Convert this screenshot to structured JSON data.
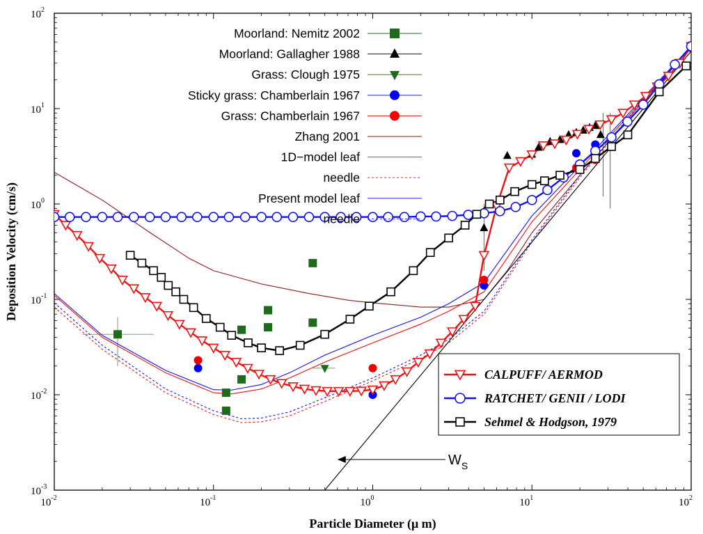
{
  "chart_data": {
    "type": "scatter",
    "xlabel": "Particle Diameter (μ m)",
    "ylabel": "Deposition Velocity (cm/s)",
    "xscale": "log",
    "yscale": "log",
    "xlim": [
      0.01,
      100
    ],
    "ylim": [
      0.001,
      100
    ],
    "x_ticks": [
      {
        "base": "10",
        "exp": "-2"
      },
      {
        "base": "10",
        "exp": "-1"
      },
      {
        "base": "10",
        "exp": "0"
      },
      {
        "base": "10",
        "exp": "1"
      },
      {
        "base": "10",
        "exp": "2"
      }
    ],
    "y_ticks": [
      {
        "base": "10",
        "exp": "-3"
      },
      {
        "base": "10",
        "exp": "-2"
      },
      {
        "base": "10",
        "exp": "-1"
      },
      {
        "base": "10",
        "exp": "0"
      },
      {
        "base": "10",
        "exp": "1"
      },
      {
        "base": "10",
        "exp": "2"
      }
    ],
    "legend_placement": "top-center",
    "secondary_legend_placement": "bottom-right",
    "annotation": {
      "text": "W",
      "sub": "S"
    },
    "series": [
      {
        "name": "Moorland: Nemitz 2002",
        "kind": "marker",
        "marker": "square",
        "color": "#1e6b1e",
        "points": [
          [
            0.025,
            0.043
          ],
          [
            0.12,
            0.0105
          ],
          [
            0.12,
            0.0068
          ],
          [
            0.15,
            0.048
          ],
          [
            0.15,
            0.0145
          ],
          [
            0.22,
            0.077
          ],
          [
            0.22,
            0.051
          ],
          [
            0.42,
            0.24
          ],
          [
            0.42,
            0.057
          ]
        ],
        "errorbars": [
          {
            "x": 0.025,
            "y": 0.043,
            "x_lo": 0.015,
            "x_hi": 0.042,
            "y_lo": 0.02,
            "y_hi": 0.065
          }
        ]
      },
      {
        "name": "Moorland: Gallagher 1988",
        "kind": "marker",
        "marker": "triangle-up",
        "color": "#000000",
        "points": [
          [
            5,
            0.56
          ],
          [
            7,
            3.2
          ],
          [
            10,
            3.3
          ],
          [
            11,
            3.9
          ],
          [
            13,
            4.5
          ],
          [
            15,
            4.7
          ],
          [
            17,
            5.3
          ],
          [
            19,
            5.6
          ],
          [
            21,
            5.9
          ],
          [
            23,
            6.3
          ],
          [
            25,
            6.6
          ],
          [
            27,
            5.3
          ]
        ],
        "errorbars": [
          {
            "x": 5,
            "y": 0.56,
            "y_lo": 0.2,
            "y_hi": 1.0
          },
          {
            "x": 28,
            "y": 5.3,
            "y_lo": 1.2,
            "y_hi": 9.0
          },
          {
            "x": 31,
            "y": 5.3,
            "y_lo": 0.9,
            "y_hi": 9.0
          }
        ]
      },
      {
        "name": "Grass: Clough 1975",
        "kind": "marker",
        "marker": "triangle-down",
        "color": "#1e6b1e",
        "points": [
          [
            0.5,
            0.019
          ]
        ],
        "errorbars": [
          {
            "x": 0.5,
            "y": 0.019,
            "x_lo": 0.42,
            "x_hi": 0.58
          }
        ]
      },
      {
        "name": "Sticky grass: Chamberlain 1967",
        "kind": "marker",
        "marker": "circle",
        "color": "#0000ee",
        "points": [
          [
            0.08,
            0.019
          ],
          [
            1.0,
            0.01
          ],
          [
            5,
            0.14
          ],
          [
            19,
            3.4
          ],
          [
            25,
            4.2
          ]
        ]
      },
      {
        "name": "Grass: Chamberlain 1967",
        "kind": "marker",
        "marker": "circle",
        "color": "#ee0000",
        "points": [
          [
            0.08,
            0.023
          ],
          [
            1.0,
            0.019
          ],
          [
            5,
            0.16
          ],
          [
            19,
            2.4
          ],
          [
            25,
            2.9
          ]
        ]
      },
      {
        "name": "Zhang 2001",
        "kind": "line",
        "color": "#8b1a1a",
        "dash": "",
        "points": [
          [
            0.01,
            2.15
          ],
          [
            0.02,
            1.1
          ],
          [
            0.04,
            0.5
          ],
          [
            0.07,
            0.27
          ],
          [
            0.1,
            0.2
          ],
          [
            0.2,
            0.145
          ],
          [
            0.4,
            0.115
          ],
          [
            0.7,
            0.098
          ],
          [
            1,
            0.092
          ],
          [
            2,
            0.083
          ],
          [
            3,
            0.083
          ],
          [
            5,
            0.1
          ],
          [
            7,
            0.2
          ],
          [
            10,
            0.5
          ],
          [
            20,
            2.0
          ],
          [
            50,
            12
          ],
          [
            100,
            45
          ]
        ]
      },
      {
        "name": "1D−model leaf",
        "kind": "line",
        "color": "#ee1111",
        "dash": "",
        "points": [
          [
            0.01,
            0.11
          ],
          [
            0.02,
            0.04
          ],
          [
            0.05,
            0.017
          ],
          [
            0.1,
            0.0105
          ],
          [
            0.13,
            0.0102
          ],
          [
            0.2,
            0.0115
          ],
          [
            0.3,
            0.015
          ],
          [
            0.5,
            0.022
          ],
          [
            1,
            0.035
          ],
          [
            2,
            0.055
          ],
          [
            3,
            0.075
          ],
          [
            5,
            0.12
          ],
          [
            10,
            0.65
          ],
          [
            20,
            2.3
          ],
          [
            50,
            12.5
          ],
          [
            100,
            45
          ]
        ]
      },
      {
        "name": "needle",
        "kind": "line",
        "color": "#ee1111",
        "dash": "3,3",
        "points": [
          [
            0.01,
            0.083
          ],
          [
            0.02,
            0.03
          ],
          [
            0.05,
            0.0105
          ],
          [
            0.1,
            0.0062
          ],
          [
            0.15,
            0.0051
          ],
          [
            0.2,
            0.0052
          ],
          [
            0.3,
            0.006
          ],
          [
            0.5,
            0.0085
          ],
          [
            1,
            0.014
          ],
          [
            2,
            0.024
          ],
          [
            3,
            0.035
          ],
          [
            5,
            0.07
          ],
          [
            10,
            0.4
          ],
          [
            20,
            1.9
          ],
          [
            50,
            12
          ],
          [
            100,
            45
          ]
        ]
      },
      {
        "name": "Present model leaf",
        "kind": "line",
        "color": "#1111ee",
        "dash": "",
        "points": [
          [
            0.01,
            0.115
          ],
          [
            0.02,
            0.042
          ],
          [
            0.05,
            0.018
          ],
          [
            0.1,
            0.0113
          ],
          [
            0.13,
            0.0112
          ],
          [
            0.2,
            0.0128
          ],
          [
            0.3,
            0.017
          ],
          [
            0.5,
            0.026
          ],
          [
            1,
            0.042
          ],
          [
            2,
            0.065
          ],
          [
            3,
            0.09
          ],
          [
            5,
            0.15
          ],
          [
            10,
            0.75
          ],
          [
            20,
            2.5
          ],
          [
            50,
            13
          ],
          [
            100,
            45
          ]
        ]
      },
      {
        "name": "needle",
        "kind": "line",
        "color": "#1111ee",
        "dash": "3,3",
        "points": [
          [
            0.01,
            0.092
          ],
          [
            0.02,
            0.033
          ],
          [
            0.05,
            0.0115
          ],
          [
            0.1,
            0.0068
          ],
          [
            0.15,
            0.0056
          ],
          [
            0.2,
            0.0057
          ],
          [
            0.3,
            0.0066
          ],
          [
            0.5,
            0.0093
          ],
          [
            1,
            0.015
          ],
          [
            2,
            0.026
          ],
          [
            3,
            0.038
          ],
          [
            5,
            0.075
          ],
          [
            10,
            0.42
          ],
          [
            20,
            2.0
          ],
          [
            50,
            12.2
          ],
          [
            100,
            45
          ]
        ]
      },
      {
        "name": "CALPUFF/ AERMOD",
        "kind": "line-marker",
        "marker": "triangle-down-open",
        "color": "#ee1111",
        "dash": "",
        "points": [
          [
            0.01,
            0.78
          ],
          [
            0.0118,
            0.6
          ],
          [
            0.0139,
            0.47
          ],
          [
            0.0164,
            0.36
          ],
          [
            0.0193,
            0.27
          ],
          [
            0.0228,
            0.21
          ],
          [
            0.0268,
            0.16
          ],
          [
            0.0316,
            0.13
          ],
          [
            0.0373,
            0.105
          ],
          [
            0.044,
            0.085
          ],
          [
            0.0518,
            0.068
          ],
          [
            0.0611,
            0.055
          ],
          [
            0.072,
            0.045
          ],
          [
            0.0848,
            0.037
          ],
          [
            0.1,
            0.031
          ],
          [
            0.118,
            0.026
          ],
          [
            0.139,
            0.022
          ],
          [
            0.164,
            0.019
          ],
          [
            0.193,
            0.0165
          ],
          [
            0.228,
            0.0145
          ],
          [
            0.268,
            0.0132
          ],
          [
            0.316,
            0.0122
          ],
          [
            0.373,
            0.0115
          ],
          [
            0.44,
            0.0111
          ],
          [
            0.518,
            0.0109
          ],
          [
            0.611,
            0.0109
          ],
          [
            0.72,
            0.0109
          ],
          [
            0.848,
            0.011
          ],
          [
            1.0,
            0.0113
          ],
          [
            1.18,
            0.0125
          ],
          [
            1.39,
            0.0145
          ],
          [
            1.64,
            0.0175
          ],
          [
            1.93,
            0.022
          ],
          [
            2.28,
            0.027
          ],
          [
            2.68,
            0.035
          ],
          [
            3.16,
            0.046
          ],
          [
            3.73,
            0.062
          ],
          [
            4.4,
            0.085
          ],
          [
            5.0,
            0.29
          ],
          [
            6.0,
            0.95
          ],
          [
            7.2,
            2.4
          ],
          [
            8.48,
            2.8
          ],
          [
            10,
            3.3
          ],
          [
            11.8,
            4.1
          ],
          [
            13.9,
            4.3
          ],
          [
            16.4,
            4.7
          ],
          [
            19.3,
            5.4
          ],
          [
            22.8,
            6.1
          ],
          [
            26.8,
            6.8
          ],
          [
            31.6,
            7.7
          ],
          [
            37.3,
            9.0
          ],
          [
            44,
            11
          ],
          [
            51.8,
            13.5
          ],
          [
            61.1,
            17
          ],
          [
            72,
            22
          ],
          [
            84.8,
            30
          ],
          [
            100,
            45
          ]
        ]
      },
      {
        "name": "RATCHET/ GENII / LODI",
        "kind": "line-marker",
        "marker": "circle-open",
        "color": "#1111ee",
        "dash": "",
        "points": [
          [
            0.01,
            0.73
          ],
          [
            0.0125,
            0.73
          ],
          [
            0.0158,
            0.73
          ],
          [
            0.02,
            0.73
          ],
          [
            0.025,
            0.73
          ],
          [
            0.0316,
            0.73
          ],
          [
            0.0398,
            0.73
          ],
          [
            0.05,
            0.73
          ],
          [
            0.063,
            0.73
          ],
          [
            0.079,
            0.73
          ],
          [
            0.1,
            0.73
          ],
          [
            0.125,
            0.73
          ],
          [
            0.158,
            0.73
          ],
          [
            0.2,
            0.73
          ],
          [
            0.25,
            0.73
          ],
          [
            0.316,
            0.73
          ],
          [
            0.398,
            0.73
          ],
          [
            0.5,
            0.73
          ],
          [
            0.63,
            0.73
          ],
          [
            0.79,
            0.73
          ],
          [
            1.0,
            0.73
          ],
          [
            1.25,
            0.73
          ],
          [
            1.58,
            0.73
          ],
          [
            2.0,
            0.74
          ],
          [
            2.5,
            0.74
          ],
          [
            3.16,
            0.75
          ],
          [
            3.98,
            0.77
          ],
          [
            5.0,
            0.8
          ],
          [
            6.3,
            0.84
          ],
          [
            7.9,
            0.93
          ],
          [
            10,
            1.1
          ],
          [
            12.5,
            1.4
          ],
          [
            15.8,
            1.9
          ],
          [
            20,
            2.6
          ],
          [
            25,
            3.6
          ],
          [
            31.6,
            5.0
          ],
          [
            39.8,
            7.3
          ],
          [
            50,
            11
          ],
          [
            63,
            18
          ],
          [
            79,
            29
          ],
          [
            100,
            45
          ]
        ]
      },
      {
        "name": "Sehmel & Hodgson, 1979",
        "kind": "line-marker",
        "marker": "square-open",
        "color": "#000000",
        "dash": "",
        "points": [
          [
            0.03,
            0.29
          ],
          [
            0.0355,
            0.24
          ],
          [
            0.042,
            0.2
          ],
          [
            0.047,
            0.17
          ],
          [
            0.052,
            0.14
          ],
          [
            0.058,
            0.12
          ],
          [
            0.065,
            0.1
          ],
          [
            0.075,
            0.082
          ],
          [
            0.09,
            0.063
          ],
          [
            0.11,
            0.051
          ],
          [
            0.13,
            0.042
          ],
          [
            0.165,
            0.035
          ],
          [
            0.2,
            0.031
          ],
          [
            0.26,
            0.029
          ],
          [
            0.35,
            0.033
          ],
          [
            0.5,
            0.043
          ],
          [
            0.72,
            0.062
          ],
          [
            0.95,
            0.085
          ],
          [
            1.3,
            0.12
          ],
          [
            1.8,
            0.2
          ],
          [
            2.3,
            0.31
          ],
          [
            3.0,
            0.44
          ],
          [
            3.8,
            0.6
          ],
          [
            4.5,
            0.78
          ],
          [
            5.4,
            1.0
          ],
          [
            6.3,
            1.1
          ],
          [
            7.8,
            1.35
          ],
          [
            10,
            1.6
          ],
          [
            12,
            1.75
          ],
          [
            15,
            2.0
          ],
          [
            20,
            2.3
          ],
          [
            25,
            3.0
          ],
          [
            31.6,
            4.0
          ],
          [
            40,
            5.3
          ],
          [
            63,
            15
          ],
          [
            93,
            28
          ]
        ]
      },
      {
        "name": "",
        "kind": "line",
        "color": "#000000",
        "dash": "",
        "role": "settling velocity",
        "points": [
          [
            0.5,
            0.001
          ],
          [
            100,
            40
          ]
        ]
      }
    ]
  }
}
